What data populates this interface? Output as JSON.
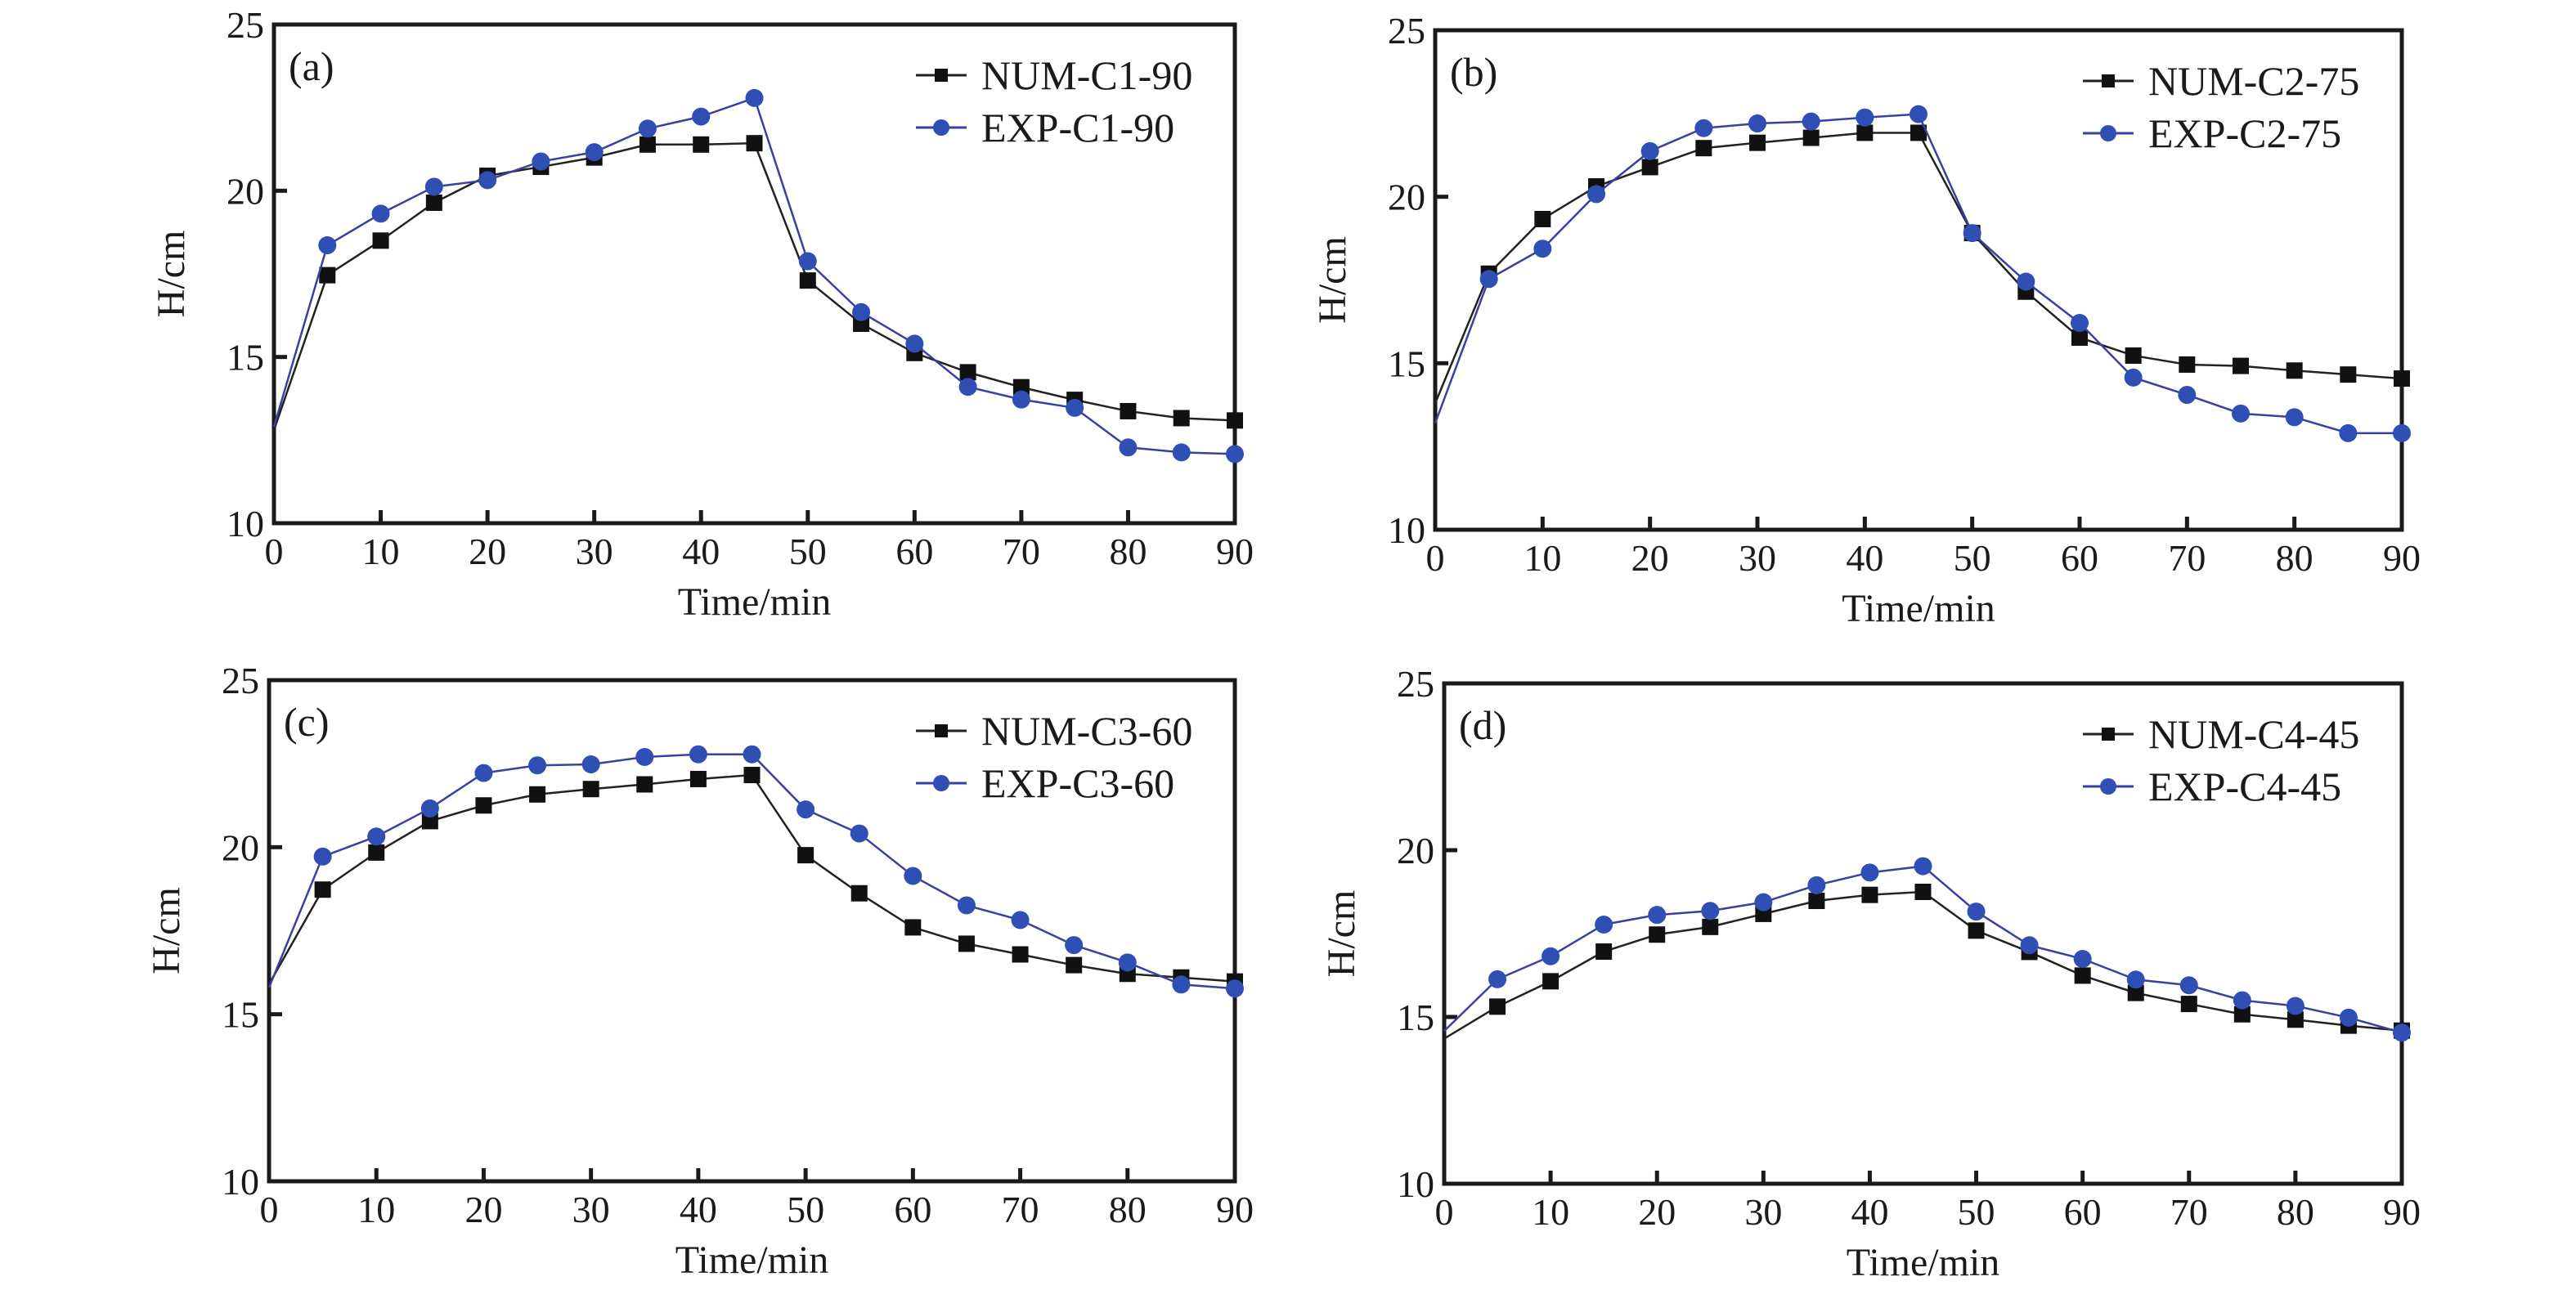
{
  "chart_data": [
    {
      "type": "line",
      "panel_label": "(a)",
      "xlabel": "Time/min",
      "ylabel": "H/cm",
      "xlim": [
        0,
        90
      ],
      "ylim": [
        10,
        25
      ],
      "x_ticks": [
        0,
        10,
        20,
        30,
        40,
        50,
        60,
        70,
        80,
        90
      ],
      "y_ticks": [
        10,
        15,
        20,
        25
      ],
      "legend_position": "top-right",
      "grid": false,
      "x": [
        0,
        5,
        10,
        15,
        20,
        25,
        30,
        35,
        40,
        45,
        50,
        55,
        60,
        65,
        70,
        75,
        80,
        85,
        90
      ],
      "series": [
        {
          "name": "NUM-C1-90",
          "color": "#111111",
          "marker": "square",
          "values": [
            12.8,
            17.46,
            18.5,
            19.64,
            20.45,
            20.72,
            21.0,
            21.39,
            21.39,
            21.43,
            17.3,
            16.0,
            15.12,
            14.54,
            14.09,
            13.71,
            13.37,
            13.16,
            13.09
          ]
        },
        {
          "name": "EXP-C1-90",
          "color": "#2f4fb4",
          "marker": "circle",
          "values": [
            12.9,
            18.36,
            19.31,
            20.12,
            20.32,
            20.88,
            21.16,
            21.87,
            22.23,
            22.79,
            17.88,
            16.35,
            15.4,
            14.1,
            13.72,
            13.47,
            12.28,
            12.13,
            12.08
          ]
        }
      ]
    },
    {
      "type": "line",
      "panel_label": "(b)",
      "xlabel": "Time/min",
      "ylabel": "H/cm",
      "xlim": [
        0,
        90
      ],
      "ylim": [
        10,
        25
      ],
      "x_ticks": [
        0,
        10,
        20,
        30,
        40,
        50,
        60,
        70,
        80,
        90
      ],
      "y_ticks": [
        10,
        15,
        20,
        25
      ],
      "legend_position": "top-right",
      "grid": false,
      "x": [
        0,
        5,
        10,
        15,
        20,
        25,
        30,
        35,
        40,
        45,
        50,
        55,
        60,
        65,
        70,
        75,
        80,
        85,
        90
      ],
      "series": [
        {
          "name": "NUM-C2-75",
          "color": "#111111",
          "marker": "square",
          "values": [
            13.8,
            17.69,
            19.33,
            20.31,
            20.89,
            21.46,
            21.62,
            21.77,
            21.92,
            21.92,
            18.91,
            17.15,
            15.77,
            15.23,
            14.96,
            14.92,
            14.78,
            14.66,
            14.54
          ]
        },
        {
          "name": "EXP-C2-75",
          "color": "#2f4fb4",
          "marker": "circle",
          "values": [
            13.2,
            17.53,
            18.44,
            20.08,
            21.37,
            22.06,
            22.2,
            22.26,
            22.38,
            22.48,
            18.91,
            17.45,
            16.21,
            14.57,
            14.05,
            13.49,
            13.38,
            12.9,
            12.9
          ]
        }
      ]
    },
    {
      "type": "line",
      "panel_label": "(c)",
      "xlabel": "Time/min",
      "ylabel": "H/cm",
      "xlim": [
        0,
        90
      ],
      "ylim": [
        10,
        25
      ],
      "x_ticks": [
        0,
        10,
        20,
        30,
        40,
        50,
        60,
        70,
        80,
        90
      ],
      "y_ticks": [
        10,
        15,
        20,
        25
      ],
      "legend_position": "top-right",
      "grid": false,
      "x": [
        0,
        5,
        10,
        15,
        20,
        25,
        30,
        35,
        40,
        45,
        50,
        55,
        60,
        65,
        70,
        75,
        80,
        85,
        90
      ],
      "series": [
        {
          "name": "NUM-C3-60",
          "color": "#111111",
          "marker": "square",
          "values": [
            15.9,
            18.73,
            19.84,
            20.78,
            21.25,
            21.58,
            21.74,
            21.88,
            22.04,
            22.16,
            19.76,
            18.62,
            17.6,
            17.11,
            16.79,
            16.47,
            16.21,
            16.1,
            15.98
          ]
        },
        {
          "name": "EXP-C3-60",
          "color": "#2f4fb4",
          "marker": "circle",
          "values": [
            15.8,
            19.72,
            20.32,
            21.16,
            22.22,
            22.45,
            22.48,
            22.7,
            22.78,
            22.78,
            21.13,
            20.41,
            19.14,
            18.26,
            17.82,
            17.07,
            16.55,
            15.89,
            15.77
          ]
        }
      ]
    },
    {
      "type": "line",
      "panel_label": "(d)",
      "xlabel": "Time/min",
      "ylabel": "H/cm",
      "xlim": [
        0,
        90
      ],
      "ylim": [
        10,
        25
      ],
      "x_ticks": [
        0,
        10,
        20,
        30,
        40,
        50,
        60,
        70,
        80,
        90
      ],
      "y_ticks": [
        10,
        15,
        20,
        25
      ],
      "legend_position": "top-right",
      "grid": false,
      "x": [
        0,
        5,
        10,
        15,
        20,
        25,
        30,
        35,
        40,
        45,
        50,
        55,
        60,
        65,
        70,
        75,
        80,
        85,
        90
      ],
      "series": [
        {
          "name": "NUM-C4-45",
          "color": "#111111",
          "marker": "square",
          "values": [
            14.35,
            15.31,
            16.07,
            16.96,
            17.47,
            17.7,
            18.09,
            18.48,
            18.66,
            18.75,
            17.59,
            16.95,
            16.24,
            15.72,
            15.39,
            15.08,
            14.92,
            14.74,
            14.59
          ]
        },
        {
          "name": "EXP-C4-45",
          "color": "#2f4fb4",
          "marker": "circle",
          "values": [
            14.58,
            16.13,
            16.82,
            17.77,
            18.06,
            18.18,
            18.44,
            18.95,
            19.33,
            19.52,
            18.16,
            17.15,
            16.74,
            16.12,
            15.95,
            15.5,
            15.33,
            14.98,
            14.53
          ]
        }
      ]
    }
  ]
}
